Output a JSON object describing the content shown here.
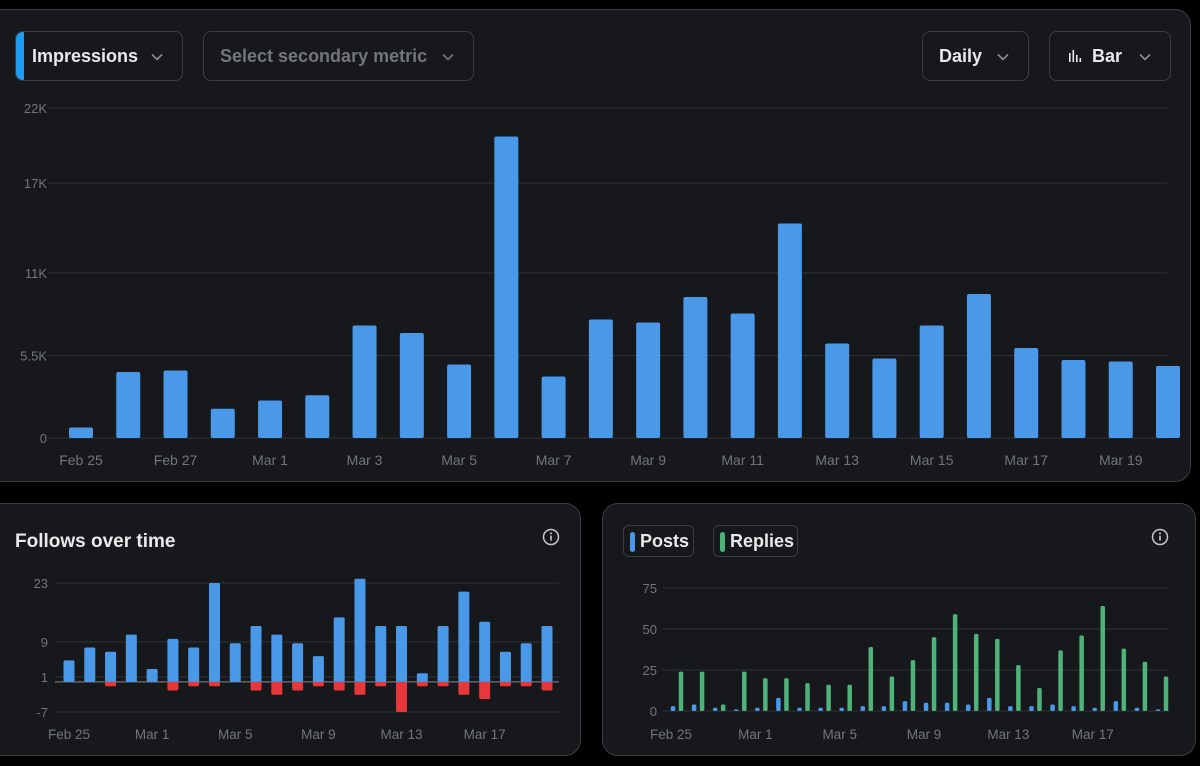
{
  "controls": {
    "primary_metric": "Impressions",
    "secondary_metric_placeholder": "Select secondary metric",
    "interval": "Daily",
    "chart_type": "Bar"
  },
  "follows_card": {
    "title": "Follows over time"
  },
  "posts_card": {
    "legend": [
      "Posts",
      "Replies"
    ]
  },
  "colors": {
    "blue": "#4a99e9",
    "red": "#e5383b",
    "green": "#4fb279",
    "grid": "#2f3336"
  },
  "chart_data": [
    {
      "type": "bar",
      "title": "",
      "yticks": [
        "0",
        "5.5K",
        "11K",
        "17K",
        "22K"
      ],
      "ylim": [
        0,
        22000
      ],
      "x_tick_labels": [
        "Feb 25",
        "Feb 27",
        "Mar 1",
        "Mar 3",
        "Mar 5",
        "Mar 7",
        "Mar 9",
        "Mar 11",
        "Mar 13",
        "Mar 15",
        "Mar 17",
        "Mar 19"
      ],
      "categories": [
        "Feb 25",
        "Feb 26",
        "Feb 27",
        "Feb 28",
        "Mar 1",
        "Mar 2",
        "Mar 3",
        "Mar 4",
        "Mar 5",
        "Mar 6",
        "Mar 7",
        "Mar 8",
        "Mar 9",
        "Mar 10",
        "Mar 11",
        "Mar 12",
        "Mar 13",
        "Mar 14",
        "Mar 15",
        "Mar 16",
        "Mar 17",
        "Mar 18",
        "Mar 19",
        "Mar 20"
      ],
      "series": [
        {
          "values": [
            700,
            4400,
            4500,
            1950,
            2500,
            2850,
            7500,
            7000,
            4900,
            20100,
            4100,
            7900,
            7700,
            9400,
            8300,
            14300,
            6300,
            5300,
            7500,
            9600,
            6000,
            5200,
            5100,
            4800
          ]
        }
      ],
      "grid": true
    },
    {
      "type": "bar",
      "title": "Follows over time",
      "yticks": [
        "23",
        "9",
        "1",
        "-7"
      ],
      "ylim": [
        -9,
        25
      ],
      "x_tick_labels": [
        "Feb 25",
        "Mar 1",
        "Mar 5",
        "Mar 9",
        "Mar 13",
        "Mar 17"
      ],
      "categories": [
        "Feb 25",
        "Feb 26",
        "Feb 27",
        "Feb 28",
        "Mar 1",
        "Mar 2",
        "Mar 3",
        "Mar 4",
        "Mar 5",
        "Mar 6",
        "Mar 7",
        "Mar 8",
        "Mar 9",
        "Mar 10",
        "Mar 11",
        "Mar 12",
        "Mar 13",
        "Mar 14",
        "Mar 15",
        "Mar 16",
        "Mar 17",
        "Mar 18",
        "Mar 19",
        "Mar 20"
      ],
      "series": [
        {
          "values": [
            5,
            8,
            7,
            11,
            3,
            10,
            8,
            23,
            9,
            13,
            11,
            9,
            6,
            15,
            24,
            13,
            13,
            2,
            13,
            21,
            14,
            7,
            9,
            13
          ]
        },
        {
          "values": [
            0,
            0,
            -1,
            0,
            0,
            -2,
            -1,
            -1,
            0,
            -2,
            -3,
            -2,
            -1,
            -2,
            -3,
            -1,
            -7,
            -1,
            -1,
            -3,
            -4,
            -1,
            -1,
            -2
          ]
        }
      ],
      "grid": true
    },
    {
      "type": "bar",
      "title": "",
      "yticks": [
        "0",
        "25",
        "50",
        "75"
      ],
      "ylim": [
        0,
        75
      ],
      "x_tick_labels": [
        "Feb 25",
        "Mar 1",
        "Mar 5",
        "Mar 9",
        "Mar 13",
        "Mar 17"
      ],
      "categories": [
        "Feb 25",
        "Feb 26",
        "Feb 27",
        "Feb 28",
        "Mar 1",
        "Mar 2",
        "Mar 3",
        "Mar 4",
        "Mar 5",
        "Mar 6",
        "Mar 7",
        "Mar 8",
        "Mar 9",
        "Mar 10",
        "Mar 11",
        "Mar 12",
        "Mar 13",
        "Mar 14",
        "Mar 15",
        "Mar 16",
        "Mar 17",
        "Mar 18",
        "Mar 19",
        "Mar 20"
      ],
      "series": [
        {
          "name": "Posts",
          "values": [
            3,
            4,
            2,
            1,
            2,
            8,
            2,
            2,
            2,
            3,
            3,
            6,
            5,
            5,
            4,
            8,
            3,
            3,
            4,
            3,
            2,
            6,
            2,
            1
          ]
        },
        {
          "name": "Replies",
          "values": [
            24,
            24,
            4,
            24,
            20,
            20,
            17,
            16,
            16,
            39,
            21,
            31,
            45,
            59,
            47,
            44,
            28,
            14,
            37,
            46,
            64,
            38,
            30,
            21
          ]
        }
      ],
      "grid": true
    }
  ]
}
